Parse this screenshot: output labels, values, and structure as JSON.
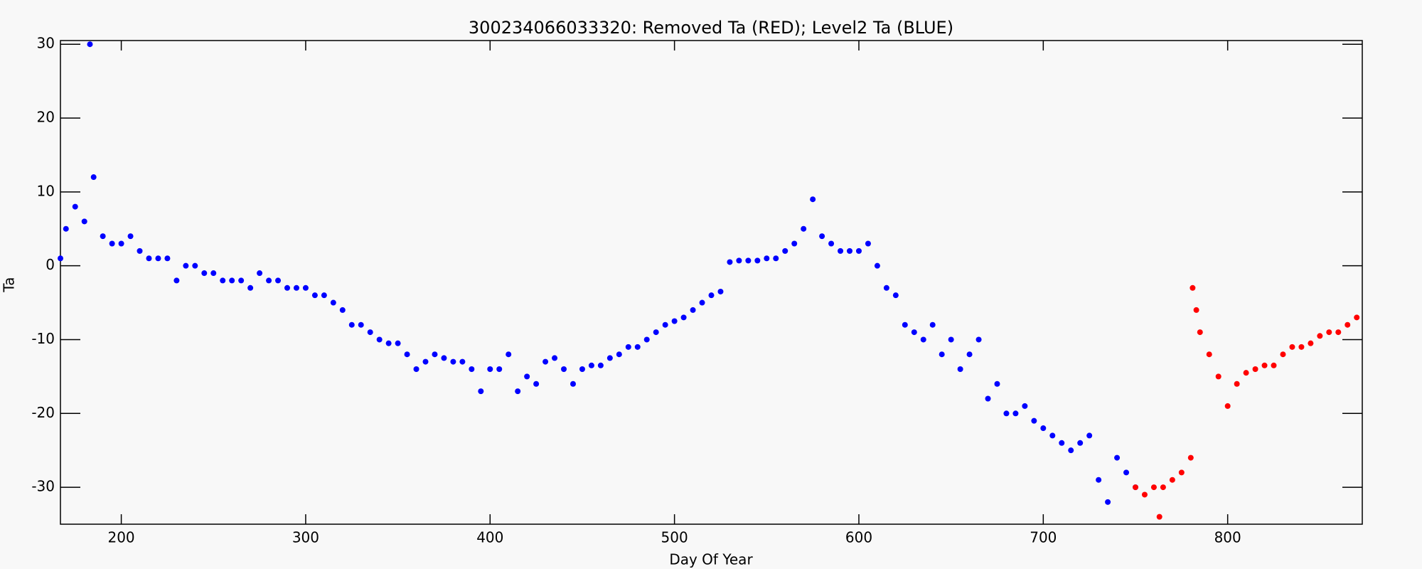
{
  "chart_data": {
    "type": "scatter",
    "title": "300234066033320: Removed Ta (RED); Level2 Ta (BLUE)",
    "x_label": "Day Of Year",
    "y_label": "Ta",
    "xlim": [
      167,
      873
    ],
    "ylim": [
      -35,
      30.5
    ],
    "xticks": [
      200,
      300,
      400,
      500,
      600,
      700,
      800
    ],
    "yticks": [
      -30,
      -20,
      -10,
      0,
      10,
      20,
      30
    ],
    "grid": false,
    "series": [
      {
        "color": "#0000ff",
        "x": [
          167,
          170,
          175,
          180,
          183,
          185,
          190,
          195,
          200,
          205,
          210,
          215,
          220,
          225,
          230,
          235,
          240,
          245,
          250,
          255,
          260,
          265,
          270,
          275,
          280,
          285,
          290,
          295,
          300,
          305,
          310,
          315,
          320,
          325,
          330,
          335,
          340,
          345,
          350,
          355,
          360,
          365,
          370,
          375,
          380,
          385,
          390,
          395,
          400,
          405,
          410,
          415,
          420,
          425,
          430,
          435,
          440,
          445,
          450,
          455,
          460,
          465,
          470,
          475,
          480,
          485,
          490,
          495,
          500,
          505,
          510,
          515,
          520,
          525,
          530,
          535,
          540,
          545,
          550,
          555,
          560,
          565,
          570,
          575,
          580,
          585,
          590,
          595,
          600,
          605,
          610,
          615,
          620,
          625,
          630,
          635,
          640,
          645,
          650,
          655,
          660,
          665,
          670,
          675,
          680,
          685,
          690,
          695,
          700,
          705,
          710,
          715,
          720,
          725,
          730,
          735,
          740,
          745,
          750
        ],
        "values": [
          1,
          5,
          8,
          6,
          30,
          12,
          4,
          3,
          3,
          4,
          2,
          1,
          1,
          1,
          -2,
          0,
          0,
          -1,
          -1,
          -2,
          -2,
          -2,
          -3,
          -1,
          -2,
          -2,
          -3,
          -3,
          -3,
          -4,
          -4,
          -5,
          -6,
          -8,
          -8,
          -9,
          -10,
          -10.5,
          -10.5,
          -12,
          -14,
          -13,
          -12,
          -12.5,
          -13,
          -13,
          -14,
          -17,
          -14,
          -14,
          -12,
          -17,
          -15,
          -16,
          -13,
          -12.5,
          -14,
          -16,
          -14,
          -13.5,
          -13.5,
          -12.5,
          -12,
          -11,
          -11,
          -10,
          -9,
          -8,
          -7.5,
          -7,
          -6,
          -5,
          -4,
          -3.5,
          0.5,
          0.7,
          0.7,
          0.7,
          1,
          1,
          2,
          3,
          5,
          9,
          4,
          3,
          2,
          2,
          2,
          3,
          0,
          -3,
          -4,
          -8,
          -9,
          -10,
          -8,
          -12,
          -10,
          -14,
          -12,
          -10,
          -18,
          -16,
          -20,
          -20,
          -19,
          -21,
          -22,
          -23,
          -24,
          -25,
          -24,
          -23,
          -29,
          -32,
          -26,
          -28,
          -30
        ]
      },
      {
        "color": "#ff0000",
        "x": [
          750,
          755,
          760,
          763,
          765,
          770,
          775,
          780,
          781,
          783,
          785,
          790,
          795,
          800,
          805,
          810,
          815,
          820,
          825,
          830,
          835,
          840,
          845,
          850,
          855,
          860,
          865,
          870
        ],
        "values": [
          -30,
          -31,
          -30,
          -34,
          -30,
          -29,
          -28,
          -26,
          -3,
          -6,
          -9,
          -12,
          -15,
          -19,
          -16,
          -14.5,
          -14,
          -13.5,
          -13.5,
          -12,
          -11,
          -11,
          -10.5,
          -9.5,
          -9,
          -9,
          -8,
          -7
        ]
      }
    ]
  }
}
